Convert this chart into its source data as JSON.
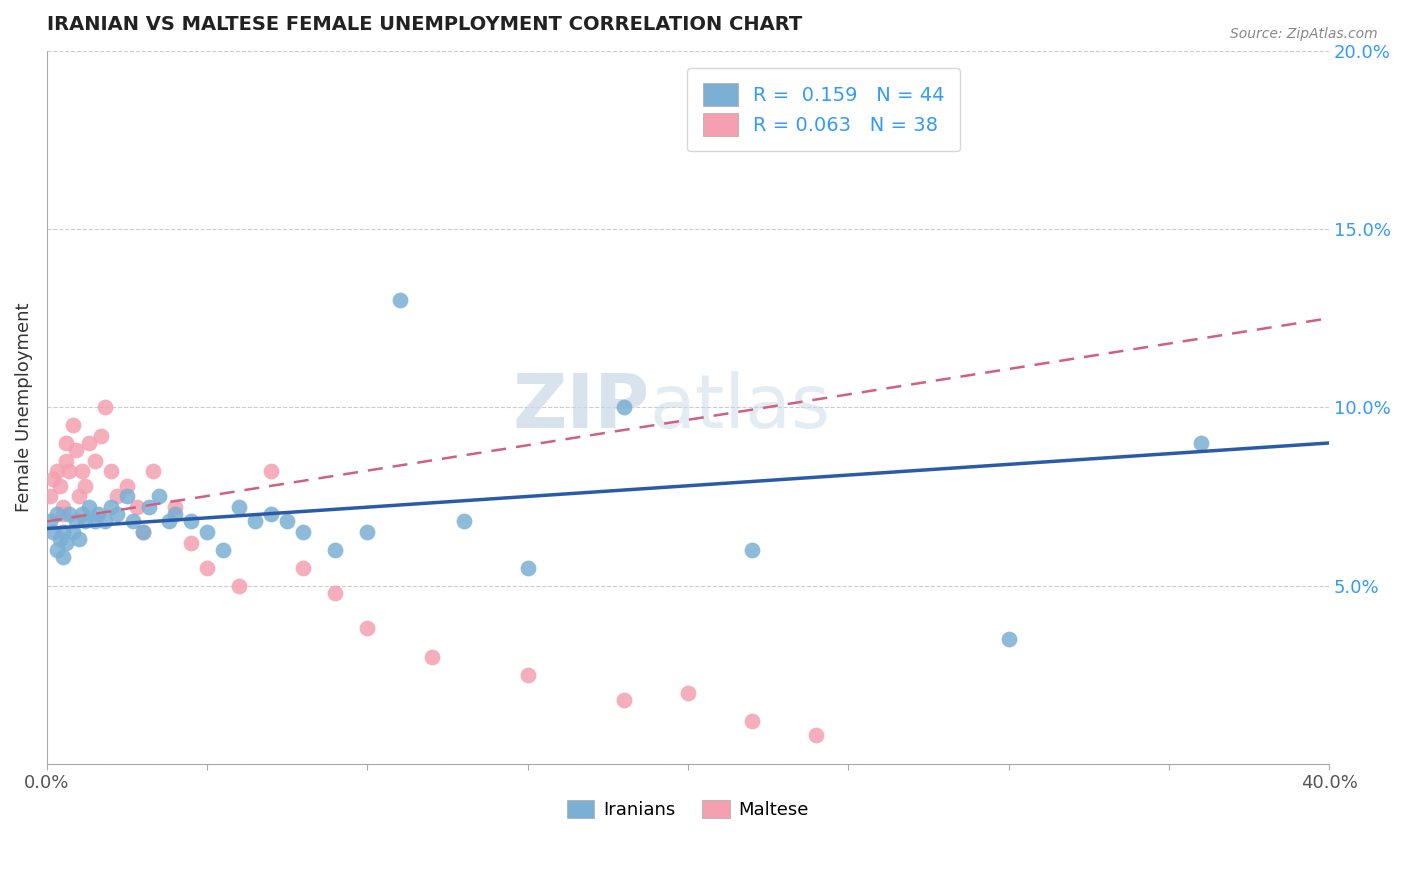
{
  "title": "IRANIAN VS MALTESE FEMALE UNEMPLOYMENT CORRELATION CHART",
  "source_text": "Source: ZipAtlas.com",
  "ylabel": "Female Unemployment",
  "xlabel": "",
  "xlim": [
    0.0,
    0.4
  ],
  "ylim": [
    0.0,
    0.2
  ],
  "xticks": [
    0.0,
    0.05,
    0.1,
    0.15,
    0.2,
    0.25,
    0.3,
    0.35,
    0.4
  ],
  "yticks": [
    0.0,
    0.05,
    0.1,
    0.15,
    0.2
  ],
  "iranians_R": 0.159,
  "iranians_N": 44,
  "maltese_R": 0.063,
  "maltese_N": 38,
  "iranian_color": "#7BAFD4",
  "maltese_color": "#F4A0B0",
  "iranian_line_color": "#2B5BA8",
  "maltese_line_color": "#D06080",
  "watermark_zip": "ZIP",
  "watermark_atlas": "atlas",
  "iranians_x": [
    0.001,
    0.002,
    0.003,
    0.003,
    0.004,
    0.005,
    0.005,
    0.006,
    0.007,
    0.008,
    0.009,
    0.01,
    0.011,
    0.012,
    0.013,
    0.015,
    0.016,
    0.018,
    0.02,
    0.022,
    0.025,
    0.027,
    0.03,
    0.032,
    0.035,
    0.038,
    0.04,
    0.045,
    0.05,
    0.055,
    0.06,
    0.065,
    0.07,
    0.075,
    0.08,
    0.09,
    0.1,
    0.11,
    0.13,
    0.15,
    0.18,
    0.22,
    0.3,
    0.36
  ],
  "iranians_y": [
    0.068,
    0.065,
    0.07,
    0.06,
    0.063,
    0.065,
    0.058,
    0.062,
    0.07,
    0.065,
    0.068,
    0.063,
    0.07,
    0.068,
    0.072,
    0.068,
    0.07,
    0.068,
    0.072,
    0.07,
    0.075,
    0.068,
    0.065,
    0.072,
    0.075,
    0.068,
    0.07,
    0.068,
    0.065,
    0.06,
    0.072,
    0.068,
    0.07,
    0.068,
    0.065,
    0.06,
    0.065,
    0.13,
    0.068,
    0.055,
    0.1,
    0.06,
    0.035,
    0.09
  ],
  "maltese_x": [
    0.001,
    0.002,
    0.003,
    0.004,
    0.005,
    0.005,
    0.006,
    0.006,
    0.007,
    0.008,
    0.009,
    0.01,
    0.011,
    0.012,
    0.013,
    0.015,
    0.017,
    0.018,
    0.02,
    0.022,
    0.025,
    0.028,
    0.03,
    0.033,
    0.04,
    0.045,
    0.05,
    0.06,
    0.07,
    0.08,
    0.09,
    0.1,
    0.12,
    0.15,
    0.18,
    0.2,
    0.22,
    0.24
  ],
  "maltese_y": [
    0.075,
    0.08,
    0.082,
    0.078,
    0.072,
    0.07,
    0.09,
    0.085,
    0.082,
    0.095,
    0.088,
    0.075,
    0.082,
    0.078,
    0.09,
    0.085,
    0.092,
    0.1,
    0.082,
    0.075,
    0.078,
    0.072,
    0.065,
    0.082,
    0.072,
    0.062,
    0.055,
    0.05,
    0.082,
    0.055,
    0.048,
    0.038,
    0.03,
    0.025,
    0.018,
    0.02,
    0.012,
    0.008
  ],
  "iranian_trend_x": [
    0.0,
    0.4
  ],
  "iranian_trend_y": [
    0.066,
    0.09
  ],
  "maltese_trend_x": [
    0.0,
    0.4
  ],
  "maltese_trend_y": [
    0.068,
    0.125
  ]
}
